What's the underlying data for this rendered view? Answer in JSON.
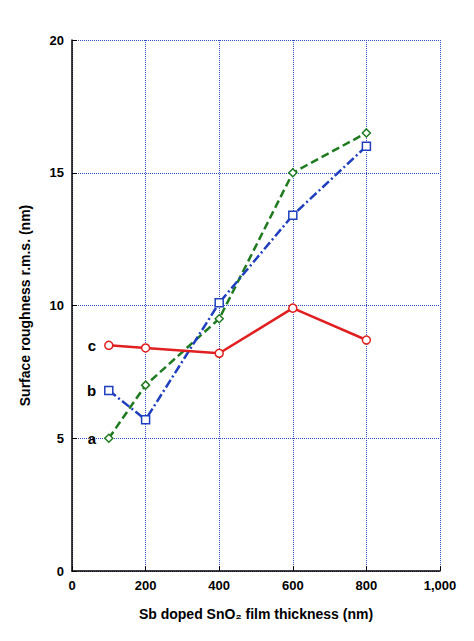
{
  "chart_data": {
    "type": "line",
    "x_label": "Sb doped SnO₂ film thickness (nm)",
    "y_label": "Surface roughness r.m.s. (nm)",
    "x": [
      100,
      200,
      400,
      600,
      800
    ],
    "series": [
      {
        "name": "a",
        "color": "#1f7a1f",
        "marker": "diamond",
        "line_style": "dashed",
        "values": [
          5.0,
          7.0,
          9.5,
          15.0,
          16.5
        ]
      },
      {
        "name": "b",
        "color": "#1f3fbf",
        "marker": "square",
        "line_style": "dashdot",
        "values": [
          6.8,
          5.7,
          10.1,
          13.4,
          16.0
        ]
      },
      {
        "name": "c",
        "color": "#e02020",
        "marker": "circle",
        "line_style": "solid",
        "values": [
          8.5,
          8.4,
          8.2,
          9.9,
          8.7
        ]
      }
    ],
    "xlim": [
      0,
      1000
    ],
    "xticks": [
      0,
      200,
      400,
      600,
      800,
      1000
    ],
    "ylim": [
      0,
      20
    ],
    "yticks": [
      0,
      5,
      10,
      15,
      20
    ],
    "grid": true
  }
}
